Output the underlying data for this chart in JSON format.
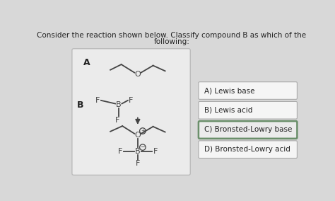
{
  "title_line1": "Consider the reaction shown below. Classify compound B as which of the",
  "title_line2": "following:",
  "bg_color": "#d8d8d8",
  "panel_bg": "#ebebeb",
  "panel_border": "#bbbbbb",
  "options": [
    {
      "label": "A) Lewis base",
      "selected": false
    },
    {
      "label": "B) Lewis acid",
      "selected": false
    },
    {
      "label": "C) Bronsted-Lowry base",
      "selected": true
    },
    {
      "label": "D) Bronsted-Lowry acid",
      "selected": false
    }
  ],
  "option_box_color": "#f5f5f5",
  "option_selected_border": "#6a8f6a",
  "option_normal_border": "#aaaaaa",
  "text_color": "#222222",
  "title_fontsize": 7.5,
  "option_fontsize": 7.5,
  "chem_color": "#444444"
}
